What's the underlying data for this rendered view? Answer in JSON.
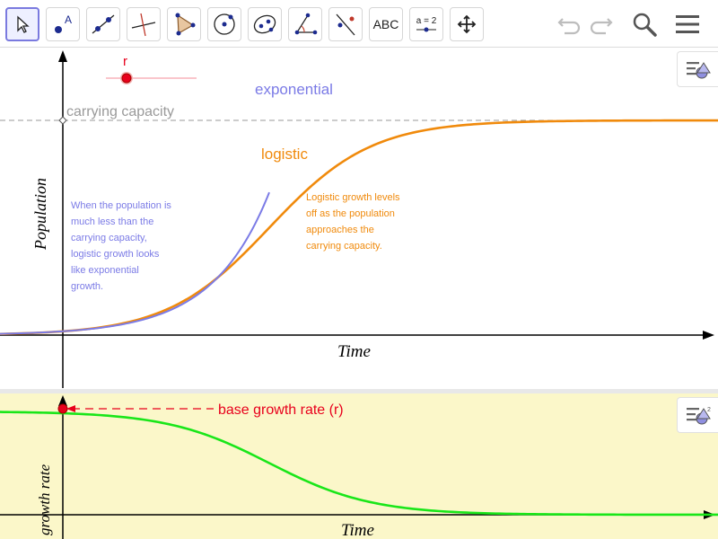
{
  "toolbar": {
    "tools": [
      {
        "name": "move-tool",
        "icon": "arrow-cursor-icon"
      },
      {
        "name": "point-tool",
        "icon": "point-icon"
      },
      {
        "name": "line-tool",
        "icon": "line-icon"
      },
      {
        "name": "perpendicular-line-tool",
        "icon": "perpendicular-icon"
      },
      {
        "name": "polygon-tool",
        "icon": "polygon-icon"
      },
      {
        "name": "circle-tool",
        "icon": "circle-icon"
      },
      {
        "name": "ellipse-tool",
        "icon": "ellipse-icon"
      },
      {
        "name": "angle-tool",
        "icon": "angle-icon"
      },
      {
        "name": "reflect-tool",
        "icon": "reflect-icon"
      },
      {
        "name": "text-tool",
        "label": "ABC"
      },
      {
        "name": "slider-tool",
        "label": "a = 2"
      },
      {
        "name": "move-graphics-tool",
        "icon": "move-arrows-icon"
      }
    ],
    "right_buttons": [
      "undo-icon",
      "redo-icon",
      "search-icon",
      "menu-icon"
    ]
  },
  "graph1": {
    "slider_label": "r",
    "exponential_label": "exponential",
    "logistic_label": "logistic",
    "capacity_label": "carrying capacity",
    "y_axis_label": "Population",
    "x_axis_label": "Time",
    "note_exponential": [
      "When the population is",
      "much less than the",
      "carrying capacity,",
      "logistic growth looks",
      "like exponential",
      "growth."
    ],
    "note_logistic": [
      "Logistic growth levels",
      "off as the population",
      "approaches the",
      "carrying capacity."
    ]
  },
  "graph2": {
    "rate_label": "base growth rate (r)",
    "y_axis_label": "growth rate",
    "x_axis_label": "Time"
  },
  "colors": {
    "exponential": "#7b7be6",
    "logistic": "#f08a0c",
    "capacity": "#9a9a9a",
    "rate": "#e8001c",
    "growth_rate_curve": "#19e619",
    "lower_panel_bg": "#fbf7c9",
    "selected_tool_border": "#7a7adf"
  }
}
